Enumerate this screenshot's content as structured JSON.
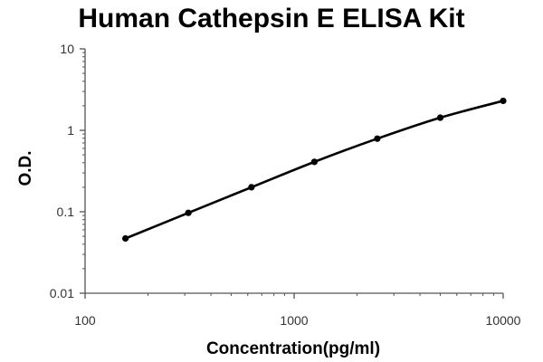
{
  "chart_data": {
    "type": "line",
    "title": "Human Cathepsin E ELISA Kit",
    "xlabel": "Concentration(pg/ml)",
    "ylabel": "O.D.",
    "xscale": "log",
    "yscale": "log",
    "xlim": [
      100,
      10000
    ],
    "ylim": [
      0.01,
      10
    ],
    "x_ticks": [
      "100",
      "1000",
      "10000"
    ],
    "y_ticks": [
      "0.01",
      "0.1",
      "1",
      "10"
    ],
    "grid": false,
    "legend": "none",
    "line_color": "#000000",
    "series": [
      {
        "x": [
          156,
          312,
          625,
          1250,
          2500,
          5000,
          10000
        ],
        "y": [
          0.047,
          0.097,
          0.2,
          0.41,
          0.79,
          1.43,
          2.3
        ]
      }
    ]
  }
}
